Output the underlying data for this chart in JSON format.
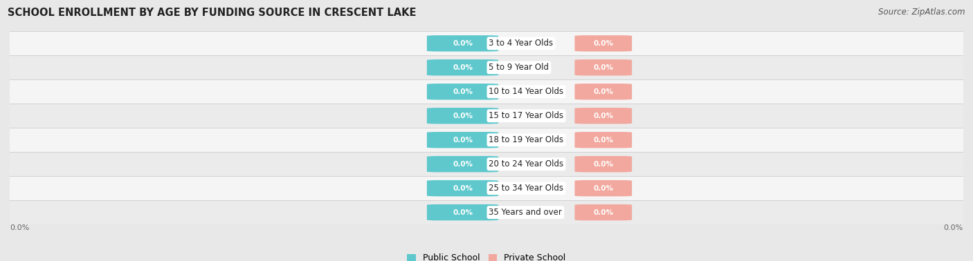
{
  "title": "SCHOOL ENROLLMENT BY AGE BY FUNDING SOURCE IN CRESCENT LAKE",
  "source_text": "Source: ZipAtlas.com",
  "categories": [
    "3 to 4 Year Olds",
    "5 to 9 Year Old",
    "10 to 14 Year Olds",
    "15 to 17 Year Olds",
    "18 to 19 Year Olds",
    "20 to 24 Year Olds",
    "25 to 34 Year Olds",
    "35 Years and over"
  ],
  "public_values": [
    0.0,
    0.0,
    0.0,
    0.0,
    0.0,
    0.0,
    0.0,
    0.0
  ],
  "private_values": [
    0.0,
    0.0,
    0.0,
    0.0,
    0.0,
    0.0,
    0.0,
    0.0
  ],
  "public_color": "#5ec8cc",
  "private_color": "#f2a89e",
  "public_label": "Public School",
  "private_label": "Private School",
  "value_label": "0.0%",
  "background_color": "#e8e8e8",
  "row_bg_even": "#f5f5f5",
  "row_bg_odd": "#ebebeb",
  "title_fontsize": 10.5,
  "source_fontsize": 8.5,
  "axis_label_left": "0.0%",
  "axis_label_right": "0.0%"
}
